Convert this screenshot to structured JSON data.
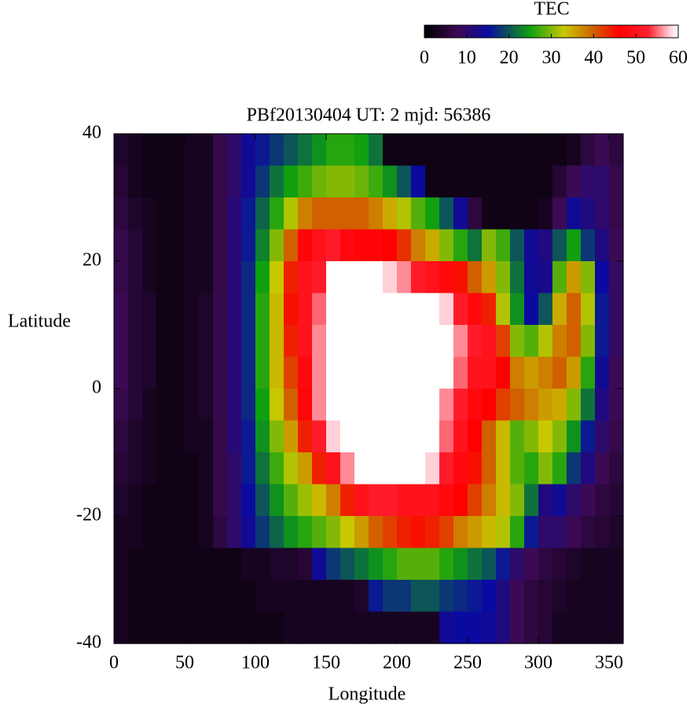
{
  "chart_data": {
    "type": "heatmap",
    "title": "PBf20130404  UT: 2  mjd: 56386",
    "xlabel": "Longitude",
    "ylabel": "Latitude",
    "colorbar_label": "TEC",
    "xlim": [
      0,
      360
    ],
    "ylim": [
      -40,
      40
    ],
    "xticks": [
      0,
      50,
      100,
      150,
      200,
      250,
      300,
      350
    ],
    "yticks": [
      40,
      20,
      0,
      -20,
      -40
    ],
    "cblim": [
      0,
      60
    ],
    "cbticks": [
      0,
      10,
      20,
      30,
      40,
      50,
      60
    ],
    "colormap": [
      [
        0,
        "#000000"
      ],
      [
        8,
        "#3c0a55"
      ],
      [
        15,
        "#0a0aa0"
      ],
      [
        25,
        "#10a010"
      ],
      [
        33,
        "#c8c800"
      ],
      [
        40,
        "#d06000"
      ],
      [
        46,
        "#ff0000"
      ],
      [
        53,
        "#ff2030"
      ],
      [
        58,
        "#ffd0d8"
      ],
      [
        60,
        "#ffffff"
      ]
    ],
    "xbins": [
      0,
      10,
      20,
      30,
      40,
      50,
      60,
      70,
      80,
      90,
      100,
      110,
      120,
      130,
      140,
      150,
      160,
      170,
      180,
      190,
      200,
      210,
      220,
      230,
      240,
      250,
      260,
      270,
      280,
      290,
      300,
      310,
      320,
      330,
      340,
      350,
      360
    ],
    "ybins": [
      40,
      35,
      30,
      25,
      20,
      15,
      10,
      5,
      0,
      -5,
      -10,
      -15,
      -20,
      -25,
      -30,
      -35,
      -40
    ],
    "z": [
      [
        4,
        3,
        2,
        2,
        2,
        3,
        3,
        7,
        10,
        14,
        16,
        18,
        20,
        22,
        24,
        26,
        26,
        25,
        22,
        2,
        2,
        2,
        2,
        2,
        2,
        2,
        2,
        2,
        2,
        2,
        2,
        2,
        3,
        6,
        8,
        6
      ],
      [
        5,
        3,
        2,
        2,
        2,
        3,
        3,
        7,
        10,
        14,
        18,
        22,
        25,
        27,
        29,
        30,
        30,
        29,
        27,
        24,
        20,
        15,
        2,
        2,
        2,
        2,
        2,
        2,
        2,
        2,
        2,
        5,
        8,
        10,
        10,
        7
      ],
      [
        6,
        4,
        3,
        2,
        2,
        3,
        3,
        7,
        11,
        16,
        21,
        26,
        32,
        38,
        40,
        40,
        40,
        40,
        38,
        35,
        32,
        28,
        25,
        20,
        14,
        6,
        2,
        2,
        2,
        2,
        3,
        8,
        14,
        12,
        10,
        7
      ],
      [
        7,
        5,
        3,
        2,
        2,
        3,
        3,
        7,
        11,
        16,
        23,
        30,
        40,
        47,
        50,
        52,
        48,
        47,
        47,
        46,
        43,
        38,
        35,
        30,
        26,
        22,
        30,
        27,
        20,
        14,
        12,
        20,
        25,
        18,
        12,
        8
      ],
      [
        7,
        5,
        3,
        2,
        2,
        3,
        3,
        7,
        11,
        17,
        25,
        33,
        44,
        50,
        52,
        60,
        60,
        60,
        60,
        58,
        56,
        52,
        50,
        48,
        45,
        40,
        36,
        30,
        22,
        14,
        13,
        28,
        36,
        30,
        15,
        9
      ],
      [
        8,
        5,
        4,
        2,
        2,
        3,
        4,
        7,
        11,
        17,
        26,
        34,
        45,
        50,
        55,
        60,
        60,
        60,
        60,
        60,
        60,
        60,
        60,
        58,
        52,
        48,
        44,
        32,
        24,
        15,
        20,
        35,
        40,
        32,
        16,
        9
      ],
      [
        8,
        5,
        4,
        2,
        2,
        3,
        4,
        7,
        11,
        17,
        26,
        34,
        44,
        50,
        56,
        60,
        60,
        60,
        60,
        60,
        60,
        60,
        60,
        60,
        56,
        52,
        50,
        42,
        30,
        28,
        32,
        38,
        40,
        30,
        16,
        9
      ],
      [
        8,
        5,
        4,
        2,
        2,
        3,
        4,
        7,
        11,
        17,
        26,
        34,
        42,
        48,
        56,
        60,
        60,
        60,
        60,
        60,
        60,
        60,
        60,
        60,
        55,
        50,
        50,
        46,
        38,
        36,
        38,
        40,
        36,
        26,
        14,
        8
      ],
      [
        7,
        5,
        3,
        2,
        2,
        3,
        4,
        7,
        11,
        17,
        25,
        33,
        40,
        47,
        56,
        60,
        60,
        60,
        60,
        60,
        60,
        60,
        60,
        56,
        52,
        48,
        46,
        42,
        40,
        38,
        36,
        35,
        30,
        22,
        12,
        8
      ],
      [
        6,
        4,
        3,
        2,
        2,
        3,
        3,
        7,
        11,
        16,
        24,
        30,
        36,
        44,
        52,
        58,
        60,
        60,
        60,
        60,
        60,
        60,
        60,
        55,
        50,
        46,
        40,
        34,
        28,
        30,
        33,
        30,
        24,
        16,
        10,
        7
      ],
      [
        5,
        4,
        3,
        2,
        2,
        2,
        3,
        7,
        10,
        16,
        22,
        27,
        32,
        36,
        44,
        50,
        56,
        60,
        60,
        60,
        60,
        60,
        58,
        52,
        48,
        45,
        40,
        34,
        28,
        26,
        30,
        26,
        18,
        12,
        8,
        6
      ],
      [
        4,
        3,
        2,
        2,
        2,
        2,
        3,
        7,
        10,
        15,
        20,
        24,
        28,
        31,
        34,
        38,
        44,
        50,
        52,
        52,
        50,
        50,
        50,
        48,
        46,
        42,
        38,
        34,
        30,
        22,
        12,
        14,
        10,
        8,
        6,
        5
      ],
      [
        3,
        3,
        2,
        2,
        2,
        2,
        3,
        6,
        10,
        14,
        18,
        21,
        24,
        26,
        28,
        30,
        33,
        36,
        40,
        42,
        44,
        45,
        44,
        42,
        38,
        36,
        34,
        32,
        26,
        16,
        10,
        10,
        8,
        6,
        5,
        4
      ],
      [
        3,
        2,
        2,
        2,
        2,
        2,
        2,
        2,
        2,
        3,
        3,
        4,
        4,
        5,
        14,
        18,
        20,
        22,
        24,
        26,
        28,
        28,
        28,
        26,
        24,
        22,
        20,
        16,
        10,
        8,
        6,
        5,
        4,
        3,
        3,
        3
      ],
      [
        3,
        2,
        2,
        2,
        2,
        2,
        2,
        2,
        2,
        2,
        3,
        3,
        3,
        3,
        3,
        3,
        3,
        4,
        16,
        18,
        18,
        20,
        20,
        18,
        17,
        16,
        15,
        12,
        8,
        6,
        5,
        4,
        3,
        3,
        3,
        3
      ],
      [
        3,
        2,
        2,
        2,
        2,
        2,
        2,
        2,
        2,
        2,
        2,
        2,
        3,
        3,
        3,
        3,
        3,
        3,
        3,
        3,
        3,
        3,
        3,
        14,
        15,
        15,
        14,
        12,
        8,
        6,
        5,
        3,
        3,
        3,
        3,
        3
      ]
    ]
  }
}
